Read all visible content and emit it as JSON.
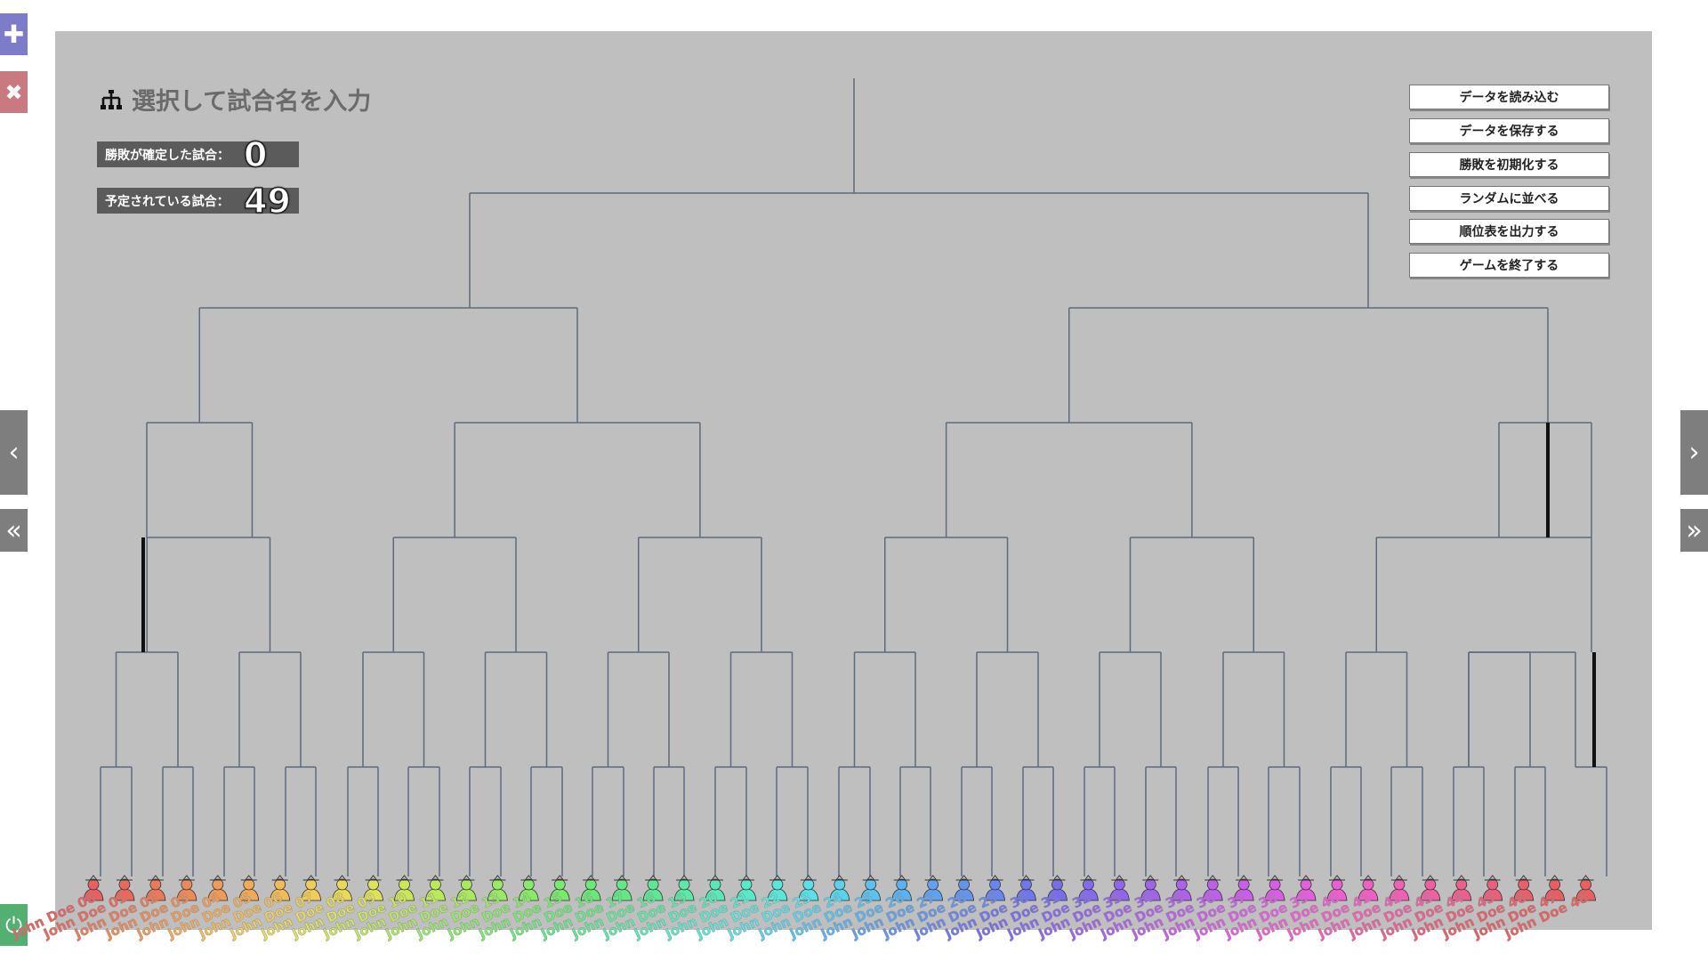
{
  "sidebar": {
    "add_glyph": "✚",
    "remove_glyph": "✖",
    "prev_glyph": "‹",
    "first_glyph": "«",
    "next_glyph": "›",
    "last_glyph": "»",
    "power_glyph": "⏻"
  },
  "header": {
    "title": "選択して試合名を入力",
    "title_icon": "tournament-icon"
  },
  "stats": {
    "decided_label": "勝敗が確定した試合：",
    "decided_value": "0",
    "scheduled_label": "予定されている試合：",
    "scheduled_value": "49"
  },
  "menu": {
    "load": "データを読み込む",
    "save": "データを保存する",
    "reset": "勝敗を初期化する",
    "shuffle": "ランダムに並べる",
    "ranking": "順位表を出力する",
    "quit": "ゲームを終了する"
  },
  "players": [
    {
      "name": "John Doe 00",
      "color": "#e86060"
    },
    {
      "name": "John Doe 01",
      "color": "#e86a5c"
    },
    {
      "name": "John Doe 02",
      "color": "#ea7a5a"
    },
    {
      "name": "John Doe 03",
      "color": "#ec8a58"
    },
    {
      "name": "John Doe 04",
      "color": "#ee9a58"
    },
    {
      "name": "John Doe 05",
      "color": "#f0aa58"
    },
    {
      "name": "John Doe 06",
      "color": "#f0bc58"
    },
    {
      "name": "John Doe 07",
      "color": "#f0cc58"
    },
    {
      "name": "John Doe 08",
      "color": "#e8da58"
    },
    {
      "name": "John Doe 09",
      "color": "#dce25a"
    },
    {
      "name": "John Doe 10",
      "color": "#cce65a"
    },
    {
      "name": "John Doe 11",
      "color": "#bce85c"
    },
    {
      "name": "John Doe 12",
      "color": "#aae860"
    },
    {
      "name": "John Doe 13",
      "color": "#98ea64"
    },
    {
      "name": "John Doe 14",
      "color": "#88ea68"
    },
    {
      "name": "John Doe 15",
      "color": "#78ea6e"
    },
    {
      "name": "John Doe 16",
      "color": "#6ce878"
    },
    {
      "name": "John Doe 17",
      "color": "#62e886"
    },
    {
      "name": "John Doe 18",
      "color": "#5ee896"
    },
    {
      "name": "John Doe 19",
      "color": "#5ce8a6"
    },
    {
      "name": "John Doe 20",
      "color": "#5ae8b8"
    },
    {
      "name": "John Doe 21",
      "color": "#5ae8ca"
    },
    {
      "name": "John Doe 22",
      "color": "#5ae6da"
    },
    {
      "name": "John Doe 23",
      "color": "#5ae0e6"
    },
    {
      "name": "John Doe 24",
      "color": "#5ad2ec"
    },
    {
      "name": "John Doe 25",
      "color": "#5ac2ee"
    },
    {
      "name": "John Doe 26",
      "color": "#5cb2ee"
    },
    {
      "name": "John Doe 27",
      "color": "#60a2ee"
    },
    {
      "name": "John Doe 28",
      "color": "#6494ee"
    },
    {
      "name": "John Doe 29",
      "color": "#6886ee"
    },
    {
      "name": "John Doe 30",
      "color": "#6e78ec"
    },
    {
      "name": "John Doe 31",
      "color": "#786eec"
    },
    {
      "name": "John Doe 32",
      "color": "#846aec"
    },
    {
      "name": "John Doe 33",
      "color": "#9266ec"
    },
    {
      "name": "John Doe 34",
      "color": "#a064ec"
    },
    {
      "name": "John Doe 35",
      "color": "#ae62ec"
    },
    {
      "name": "John Doe 36",
      "color": "#bc60ea"
    },
    {
      "name": "John Doe 37",
      "color": "#ca5ee8"
    },
    {
      "name": "John Doe 38",
      "color": "#d85ee4"
    },
    {
      "name": "John Doe 39",
      "color": "#e45ede"
    },
    {
      "name": "John Doe 40",
      "color": "#ec5ed2"
    },
    {
      "name": "John Doe 41",
      "color": "#f060c4"
    },
    {
      "name": "John Doe 42",
      "color": "#f060b4"
    },
    {
      "name": "John Doe 43",
      "color": "#ee60a2"
    },
    {
      "name": "John Doe 44",
      "color": "#ec608e"
    },
    {
      "name": "John Doe 45",
      "color": "#ea607c"
    },
    {
      "name": "John Doe 46",
      "color": "#e8606c"
    },
    {
      "name": "John Doe 47",
      "color": "#e85e62"
    },
    {
      "name": "John Doe 48",
      "color": "#e86060"
    }
  ],
  "colors": {
    "board": "#bfbfbf",
    "line": "#5f6b7d",
    "highlight": "#111111"
  }
}
